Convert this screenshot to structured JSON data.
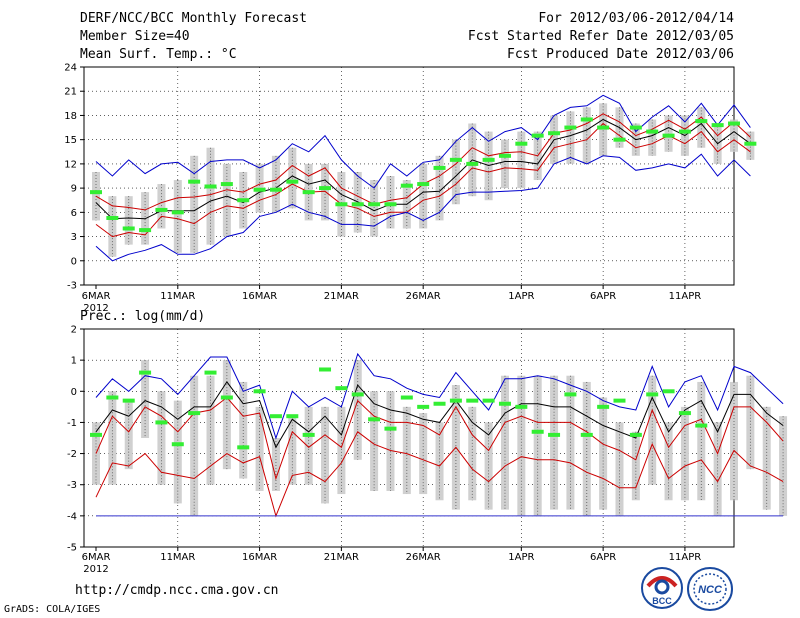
{
  "header": {
    "title": "DERF/NCC/BCC Monthly Forecast",
    "member_size": "Member Size=40",
    "variable_temp": "Mean Surf. Temp.: °C",
    "period": "For 2012/03/06-2012/04/14",
    "fcst_started": "Fcst Started Refer Date 2012/03/05",
    "fcst_produced": "Fcst Produced Date 2012/03/06"
  },
  "variable_prec": "Prec.: log(mm/d)",
  "year_label": "2012",
  "footer": {
    "url": "http://cmdp.ncc.cma.gov.cn",
    "credit": "GrADS: COLA/IGES",
    "logo_bcc": "BCC",
    "logo_ncc": "NCC"
  },
  "colors": {
    "ensemble_mean": "#000000",
    "percentile_band": "#cc0000",
    "envelope": "#0000cc",
    "observation": "#33ee33",
    "spread_bar": "#d0d0d0"
  },
  "chart_data": [
    {
      "type": "line",
      "title": "Mean Surf. Temp.: °C",
      "x_tick_labels": [
        "6MAR",
        "11MAR",
        "16MAR",
        "21MAR",
        "26MAR",
        "1APR",
        "6APR",
        "11APR"
      ],
      "x_tick_days": [
        0,
        5,
        10,
        15,
        20,
        26,
        31,
        36
      ],
      "xlim": [
        0,
        39
      ],
      "ylim": [
        -3,
        24
      ],
      "y_ticks": [
        -3,
        0,
        3,
        6,
        9,
        12,
        15,
        18,
        21,
        24
      ],
      "grid": "dotted",
      "series": [
        {
          "name": "ensemble mean",
          "color": "#000000",
          "values": [
            7.2,
            5.2,
            5.3,
            5.2,
            6.2,
            6.2,
            6.2,
            7.4,
            8.0,
            7.2,
            8.5,
            9.0,
            10.5,
            9.5,
            10.0,
            8.2,
            7.3,
            6.2,
            7.0,
            7.0,
            8.5,
            8.6,
            10.5,
            12.5,
            11.8,
            12.3,
            12.3,
            12.0,
            15.0,
            15.5,
            16.2,
            17.5,
            16.5,
            15.0,
            15.5,
            16.5,
            15.5,
            17.0,
            14.5,
            16.0,
            14.5
          ]
        },
        {
          "name": "upper red",
          "color": "#cc0000",
          "values": [
            8.0,
            6.8,
            6.6,
            6.3,
            7.2,
            7.8,
            7.9,
            8.2,
            8.8,
            8.5,
            9.5,
            10.0,
            11.8,
            10.5,
            11.5,
            9.0,
            8.0,
            7.0,
            7.5,
            7.8,
            9.5,
            10.5,
            12.0,
            14.0,
            13.0,
            13.4,
            13.5,
            13.0,
            15.8,
            16.2,
            17.0,
            18.2,
            17.2,
            15.5,
            16.3,
            17.4,
            16.3,
            17.8,
            15.5,
            17.2,
            15.3
          ]
        },
        {
          "name": "lower red",
          "color": "#cc0000",
          "values": [
            4.5,
            3.0,
            3.5,
            3.2,
            5.5,
            5.2,
            4.6,
            6.0,
            6.8,
            6.5,
            7.5,
            8.2,
            9.5,
            8.5,
            8.6,
            7.0,
            6.5,
            5.5,
            6.0,
            6.0,
            7.5,
            8.0,
            9.5,
            11.5,
            11.0,
            11.5,
            11.4,
            11.2,
            14.0,
            14.5,
            15.0,
            17.0,
            15.5,
            14.0,
            14.5,
            15.5,
            14.5,
            16.0,
            13.5,
            15.0,
            13.5
          ]
        },
        {
          "name": "max",
          "color": "#0000cc",
          "values": [
            12.3,
            10.5,
            12.5,
            10.8,
            12.0,
            12.2,
            10.8,
            12.3,
            12.5,
            12.5,
            11.5,
            12.5,
            14.5,
            13.5,
            15.5,
            12.5,
            10.5,
            9.0,
            12.0,
            10.5,
            12.2,
            12.5,
            14.8,
            16.5,
            14.8,
            16.0,
            16.5,
            15.0,
            18.0,
            19.0,
            19.2,
            20.5,
            19.5,
            16.0,
            17.8,
            19.2,
            17.2,
            19.5,
            16.8,
            19.3,
            16.5
          ]
        },
        {
          "name": "min",
          "color": "#0000cc",
          "values": [
            1.8,
            0.0,
            0.8,
            1.3,
            2.0,
            0.8,
            0.8,
            1.5,
            3.0,
            3.5,
            5.5,
            6.0,
            7.0,
            6.0,
            5.5,
            4.5,
            4.5,
            4.3,
            5.5,
            6.0,
            5.0,
            6.0,
            8.2,
            8.5,
            8.5,
            8.6,
            8.7,
            9.0,
            12.0,
            12.8,
            12.0,
            13.0,
            12.8,
            11.2,
            11.5,
            12.0,
            11.5,
            13.2,
            10.5,
            12.5,
            10.5
          ]
        }
      ],
      "observations": [
        8.5,
        5.3,
        4.0,
        3.8,
        6.3,
        6.0,
        9.8,
        9.2,
        9.5,
        7.5,
        8.8,
        8.8,
        9.8,
        8.5,
        9.0,
        7.0,
        7.0,
        7.0,
        7.0,
        9.3,
        9.5,
        11.5,
        12.5,
        12.0,
        12.5,
        13.0,
        14.5,
        15.5,
        15.8,
        16.5,
        17.5,
        16.5,
        15.0,
        16.5,
        16.0,
        15.5,
        16.0,
        17.3,
        16.8,
        17.0,
        14.5
      ],
      "spread_bars": [
        [
          5,
          11
        ],
        [
          0.5,
          8
        ],
        [
          2,
          8
        ],
        [
          2,
          8.5
        ],
        [
          4,
          9.5
        ],
        [
          1,
          10
        ],
        [
          1,
          13
        ],
        [
          2,
          14
        ],
        [
          3,
          12
        ],
        [
          4,
          11
        ],
        [
          6,
          12
        ],
        [
          6,
          13
        ],
        [
          6.5,
          14
        ],
        [
          5,
          12
        ],
        [
          5,
          12
        ],
        [
          3,
          11
        ],
        [
          3.5,
          11
        ],
        [
          3,
          10
        ],
        [
          4,
          10.5
        ],
        [
          4,
          10
        ],
        [
          4,
          12
        ],
        [
          5,
          13
        ],
        [
          7,
          15
        ],
        [
          8,
          17
        ],
        [
          7.5,
          16
        ],
        [
          9,
          15
        ],
        [
          9,
          16
        ],
        [
          10,
          16
        ],
        [
          12,
          18
        ],
        [
          12,
          18.5
        ],
        [
          12,
          19
        ],
        [
          13,
          19.5
        ],
        [
          14,
          19
        ],
        [
          13,
          17
        ],
        [
          13,
          17.5
        ],
        [
          13.5,
          18
        ],
        [
          13,
          18
        ],
        [
          14,
          19
        ],
        [
          12,
          17
        ],
        [
          13.5,
          17.5
        ],
        [
          12.5,
          16
        ]
      ]
    },
    {
      "type": "line",
      "title": "Prec.: log(mm/d)",
      "x_tick_labels": [
        "6MAR",
        "11MAR",
        "16MAR",
        "21MAR",
        "26MAR",
        "1APR",
        "6APR",
        "11APR"
      ],
      "x_tick_days": [
        0,
        5,
        10,
        15,
        20,
        26,
        31,
        36
      ],
      "xlim": [
        0,
        39
      ],
      "ylim": [
        -5,
        2
      ],
      "y_ticks": [
        -5,
        -4,
        -3,
        -2,
        -1,
        0,
        1,
        2
      ],
      "grid": "dotted",
      "series": [
        {
          "name": "ensemble mean",
          "color": "#000000",
          "values": [
            -1.3,
            -0.6,
            -0.8,
            -0.3,
            -0.5,
            -0.9,
            -0.5,
            -0.5,
            0.3,
            -0.4,
            -0.3,
            -1.8,
            -0.9,
            -1.3,
            -0.8,
            -1.4,
            0.2,
            -0.4,
            -0.6,
            -0.7,
            -0.9,
            -1.0,
            -0.3,
            -1.0,
            -1.4,
            -0.7,
            -0.4,
            -0.4,
            -0.5,
            -0.5,
            -0.8,
            -1.1,
            -1.3,
            -1.5,
            -0.2,
            -1.3,
            -0.6,
            -0.3,
            -1.3,
            -0.1,
            -0.1,
            -0.7,
            -1.1
          ]
        },
        {
          "name": "upper red",
          "color": "#cc0000",
          "values": [
            -2.0,
            -0.8,
            -1.3,
            -0.5,
            -0.8,
            -1.3,
            -0.7,
            -0.6,
            -0.2,
            -0.8,
            -0.7,
            -2.8,
            -1.3,
            -1.8,
            -1.4,
            -1.8,
            -0.3,
            -0.8,
            -1.0,
            -1.0,
            -1.1,
            -1.4,
            -0.5,
            -1.4,
            -1.9,
            -1.0,
            -0.8,
            -1.0,
            -1.0,
            -1.0,
            -1.3,
            -1.7,
            -1.9,
            -2.2,
            -0.6,
            -1.8,
            -1.1,
            -0.9,
            -2.0,
            -0.5,
            -0.5,
            -1.0,
            -1.6
          ]
        },
        {
          "name": "lower red",
          "color": "#cc0000",
          "values": [
            -3.4,
            -2.3,
            -2.4,
            -2.0,
            -2.6,
            -2.7,
            -2.8,
            -2.4,
            -2.0,
            -2.3,
            -2.1,
            -4.0,
            -2.7,
            -2.6,
            -2.9,
            -2.3,
            -1.3,
            -1.7,
            -1.9,
            -2.0,
            -2.2,
            -2.4,
            -1.8,
            -2.5,
            -2.9,
            -2.4,
            -2.1,
            -2.2,
            -2.2,
            -2.3,
            -2.6,
            -2.8,
            -3.1,
            -3.1,
            -1.7,
            -2.8,
            -2.4,
            -2.2,
            -2.9,
            -1.9,
            -2.4,
            -2.6,
            -2.9
          ]
        },
        {
          "name": "max",
          "color": "#0000cc",
          "values": [
            -0.2,
            0.4,
            0.0,
            0.5,
            0.4,
            -0.1,
            0.5,
            1.1,
            1.1,
            0.0,
            0.2,
            -1.5,
            0.0,
            -0.5,
            -0.2,
            -0.5,
            1.2,
            0.5,
            0.4,
            0.1,
            -0.1,
            -0.2,
            0.6,
            0.0,
            -0.6,
            0.4,
            0.4,
            0.5,
            0.4,
            0.2,
            0.0,
            -0.3,
            -0.5,
            -0.6,
            0.8,
            -0.5,
            0.3,
            0.5,
            -0.6,
            0.8,
            0.6,
            0.1,
            -0.4
          ]
        },
        {
          "name": "min",
          "color": "#3333cc",
          "values": [
            -4,
            -4,
            -4,
            -4,
            -4,
            -4,
            -4,
            -4,
            -4,
            -4,
            -4,
            -4,
            -4,
            -4,
            -4,
            -4,
            -4,
            -4,
            -4,
            -4,
            -4,
            -4,
            -4,
            -4,
            -4,
            -4,
            -4,
            -4,
            -4,
            -4,
            -4,
            -4,
            -4,
            -4,
            -4,
            -4,
            -4,
            -4,
            -4,
            -4,
            -4,
            -4,
            -4
          ]
        }
      ],
      "observations": [
        -1.4,
        -0.2,
        -0.3,
        0.6,
        -1.0,
        -1.7,
        -0.7,
        0.6,
        -0.2,
        -1.8,
        0.0,
        -0.8,
        -0.8,
        -1.4,
        0.7,
        0.1,
        -0.1,
        -0.9,
        -1.2,
        -0.2,
        -0.5,
        -0.4,
        -0.3,
        -0.3,
        -0.3,
        -0.4,
        -0.5,
        -1.3,
        -1.4,
        -0.1,
        -1.4,
        -0.5,
        -0.3,
        -1.4,
        -0.1,
        0.0,
        -0.7,
        -1.1
      ],
      "spread_bars": [
        [
          -3.0,
          -1.0
        ],
        [
          -3.0,
          0.0
        ],
        [
          -2.5,
          -0.3
        ],
        [
          -1.5,
          1.0
        ],
        [
          -3.0,
          0.0
        ],
        [
          -3.6,
          -0.3
        ],
        [
          -4.0,
          0.5
        ],
        [
          -3.0,
          0.5
        ],
        [
          -2.5,
          1.0
        ],
        [
          -2.8,
          0.3
        ],
        [
          -3.2,
          -0.5
        ],
        [
          -3.2,
          -1.5
        ],
        [
          -3.0,
          -0.8
        ],
        [
          -3.0,
          -0.5
        ],
        [
          -3.6,
          -0.5
        ],
        [
          -3.3,
          -0.5
        ],
        [
          -2.2,
          1.0
        ],
        [
          -3.2,
          0.0
        ],
        [
          -3.2,
          0.0
        ],
        [
          -3.3,
          -0.5
        ],
        [
          -3.3,
          -0.7
        ],
        [
          -3.5,
          -1.0
        ],
        [
          -3.8,
          0.2
        ],
        [
          -3.5,
          -0.5
        ],
        [
          -3.8,
          -1.0
        ],
        [
          -3.8,
          0.5
        ],
        [
          -4.0,
          0.5
        ],
        [
          -4.0,
          0.5
        ],
        [
          -3.8,
          0.5
        ],
        [
          -3.8,
          0.5
        ],
        [
          -4.0,
          0.3
        ],
        [
          -3.8,
          -0.2
        ],
        [
          -4.0,
          -1.0
        ],
        [
          -3.5,
          -1.3
        ],
        [
          -3.0,
          0.5
        ],
        [
          -3.5,
          -1.0
        ],
        [
          -3.5,
          -0.5
        ],
        [
          -3.5,
          0.3
        ],
        [
          -4.0,
          -1.0
        ],
        [
          -3.5,
          0.3
        ],
        [
          -2.5,
          0.5
        ],
        [
          -3.8,
          -0.5
        ],
        [
          -4.0,
          -0.8
        ]
      ]
    }
  ]
}
